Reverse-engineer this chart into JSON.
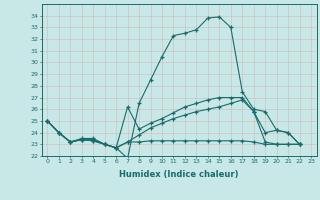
{
  "title": "",
  "xlabel": "Humidex (Indice chaleur)",
  "background_color": "#c8e8e8",
  "grid_color": "#b0d4d4",
  "line_color": "#1a6b6b",
  "xlim": [
    -0.5,
    23.5
  ],
  "ylim": [
    22,
    35
  ],
  "yticks": [
    22,
    23,
    24,
    25,
    26,
    27,
    28,
    29,
    30,
    31,
    32,
    33,
    34
  ],
  "xticks": [
    0,
    1,
    2,
    3,
    4,
    5,
    6,
    7,
    8,
    9,
    10,
    11,
    12,
    13,
    14,
    15,
    16,
    17,
    18,
    19,
    20,
    21,
    22,
    23
  ],
  "series1": [
    25.0,
    24.0,
    23.2,
    23.5,
    23.5,
    23.0,
    22.7,
    21.8,
    26.5,
    28.5,
    30.5,
    32.3,
    32.5,
    32.8,
    33.8,
    33.9,
    33.0,
    27.5,
    26.0,
    25.8,
    24.2,
    24.0,
    23.0
  ],
  "series2": [
    25.0,
    24.0,
    23.2,
    23.4,
    23.4,
    23.0,
    22.7,
    26.2,
    24.3,
    24.8,
    25.2,
    25.7,
    26.2,
    26.5,
    26.8,
    27.0,
    27.0,
    27.0,
    25.8,
    24.0,
    24.2,
    24.0,
    23.0
  ],
  "series3": [
    25.0,
    24.0,
    23.2,
    23.4,
    23.3,
    23.0,
    22.7,
    23.2,
    23.8,
    24.4,
    24.8,
    25.2,
    25.5,
    25.8,
    26.0,
    26.2,
    26.5,
    26.8,
    25.8,
    23.2,
    23.0,
    23.0,
    23.0
  ],
  "series4": [
    25.0,
    24.0,
    23.2,
    23.4,
    23.3,
    23.0,
    22.7,
    23.2,
    23.2,
    23.3,
    23.3,
    23.3,
    23.3,
    23.3,
    23.3,
    23.3,
    23.3,
    23.3,
    23.2,
    23.0,
    23.0,
    23.0,
    23.0
  ]
}
